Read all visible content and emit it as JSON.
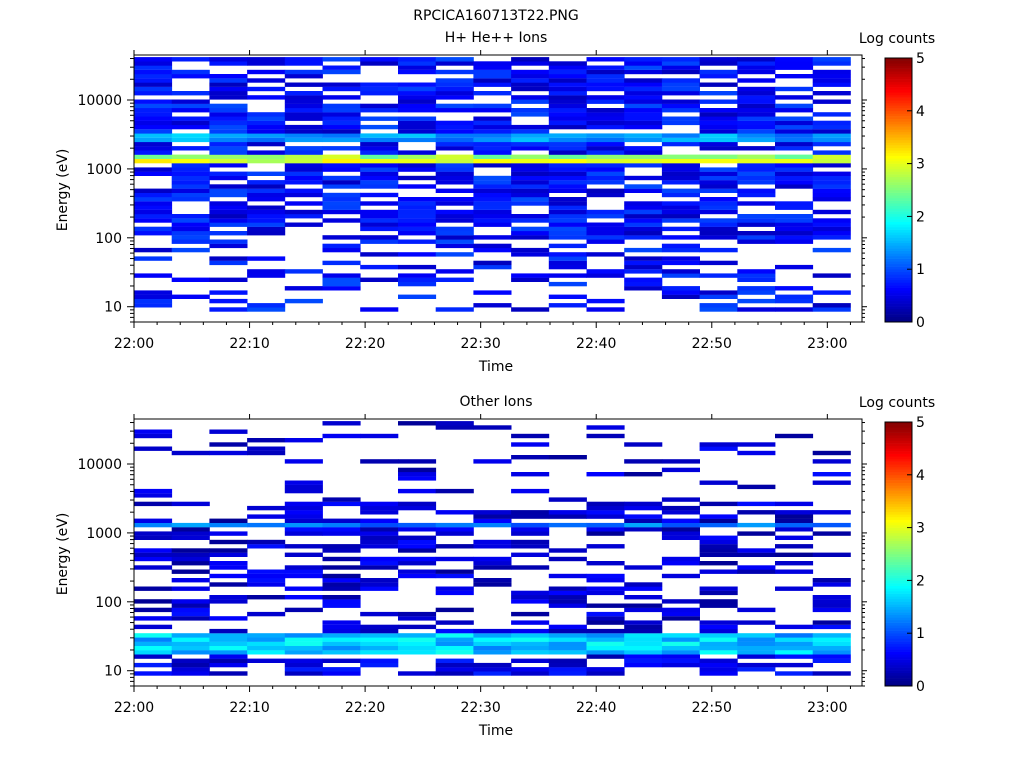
{
  "figure": {
    "title": "RPCICA160713T22.PNG"
  },
  "colors": {
    "background": "#ffffff",
    "colormap": [
      "#00008f",
      "#0000ff",
      "#00ffff",
      "#ffff00",
      "#ff0000",
      "#800000"
    ]
  },
  "chart_data": [
    {
      "type": "heatmap",
      "title": "H+ He++ Ions",
      "xlabel": "Time",
      "ylabel": "Energy (eV)",
      "x_ticks": [
        "22:00",
        "22:10",
        "22:20",
        "22:30",
        "22:40",
        "22:50",
        "23:00"
      ],
      "y_ticks": [
        "10",
        "100",
        "1000",
        "10000"
      ],
      "y_scale": "log",
      "ylim": [
        6,
        45000
      ],
      "xlim": [
        "22:00",
        "23:03"
      ],
      "colorbar": {
        "label": "Log counts",
        "ticks": [
          "0",
          "1",
          "2",
          "3",
          "4",
          "5"
        ],
        "range": [
          0,
          5
        ]
      },
      "time_bins": 19,
      "energy_bins": 60,
      "pattern": {
        "peak_energy_eV": 1350,
        "peak_log_counts": 3.1,
        "secondary_peak_energy_eV": 2800,
        "secondary_peak_log_counts": 1.4,
        "background_log_counts": 0.3,
        "sparse_below_eV": 100
      }
    },
    {
      "type": "heatmap",
      "title": "Other Ions",
      "xlabel": "Time",
      "ylabel": "Energy (eV)",
      "x_ticks": [
        "22:00",
        "22:10",
        "22:20",
        "22:30",
        "22:40",
        "22:50",
        "23:00"
      ],
      "y_ticks": [
        "10",
        "100",
        "1000",
        "10000"
      ],
      "y_scale": "log",
      "ylim": [
        6,
        45000
      ],
      "xlim": [
        "22:00",
        "23:03"
      ],
      "colorbar": {
        "label": "Log counts",
        "ticks": [
          "0",
          "1",
          "2",
          "3",
          "4",
          "5"
        ],
        "range": [
          0,
          5
        ]
      },
      "time_bins": 19,
      "energy_bins": 60,
      "pattern": {
        "peak_energy_eV": 1350,
        "peak_log_counts": 1.2,
        "low_energy_band_eV": [
          18,
          35
        ],
        "low_energy_band_log_counts": 1.6,
        "background_log_counts": 0.1,
        "sparse_above_eV": 3000
      }
    }
  ]
}
